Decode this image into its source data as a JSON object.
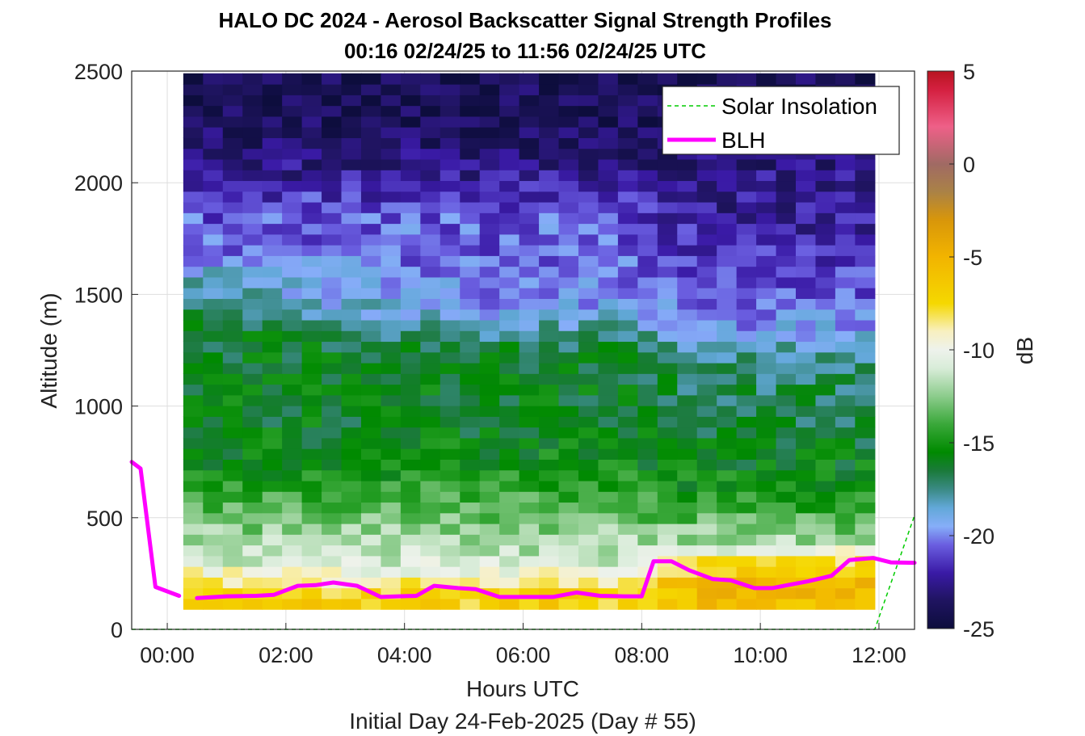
{
  "chart_data": {
    "type": "heatmap",
    "title": "HALO DC 2024 - Aerosol Backscatter Signal Strength Profiles",
    "subtitle": "00:16 02/24/25 to 11:56 02/24/25  UTC",
    "xlabel": "Hours UTC",
    "xlabel2": "Initial Day 24-Feb-2025 (Day # 55)",
    "ylabel": "Altitude (m)",
    "colorbar_label": "dB",
    "xlim": [
      -0.6,
      12.6
    ],
    "ylim": [
      0,
      2500
    ],
    "clim": [
      -25,
      5
    ],
    "x_ticks": [
      0,
      2,
      4,
      6,
      8,
      10,
      12
    ],
    "x_tick_labels": [
      "00:00",
      "02:00",
      "04:00",
      "06:00",
      "08:00",
      "10:00",
      "12:00"
    ],
    "y_ticks": [
      0,
      500,
      1000,
      1500,
      2000,
      2500
    ],
    "y_tick_labels": [
      "0",
      "500",
      "1000",
      "1500",
      "2000",
      "2500"
    ],
    "cb_ticks": [
      5,
      0,
      -5,
      -10,
      -15,
      -20,
      -25
    ],
    "cb_tick_labels": [
      "5",
      "0",
      "-5",
      "-10",
      "-15",
      "-20",
      "-25"
    ],
    "grid": true,
    "legend_position": "top-right",
    "heatmap": {
      "time_start": 0.27,
      "time_end": 11.93,
      "n_time": 35,
      "alt_start": 90,
      "alt_step": 48,
      "level_altitudes": [
        90,
        150,
        200,
        300,
        400,
        500,
        600,
        700,
        800,
        900,
        1000,
        1100,
        1200,
        1300,
        1400,
        1500,
        1550,
        1700,
        1800,
        1900,
        2000,
        2100,
        2200,
        2300,
        2400,
        2500
      ],
      "level_values_early": [
        -7,
        -7,
        -8,
        -11,
        -12,
        -13,
        -14,
        -15,
        -15.5,
        -16,
        -16,
        -16,
        -16,
        -16,
        -16.5,
        -18,
        -18,
        -20.5,
        -20.5,
        -21,
        -22,
        -23,
        -23.5,
        -24,
        -24,
        -24
      ],
      "level_values_mid": [
        -7,
        -7,
        -8,
        -11,
        -12,
        -13,
        -14,
        -15,
        -15.5,
        -16,
        -16,
        -16,
        -16,
        -17,
        -19,
        -20,
        -20,
        -20.5,
        -20.5,
        -21,
        -22,
        -23,
        -23.5,
        -24,
        -24,
        -24
      ],
      "level_values_late": [
        -6,
        -5.5,
        -5,
        -8,
        -12,
        -13.5,
        -15,
        -15.5,
        -16,
        -16.5,
        -16.5,
        -17,
        -17,
        -19,
        -20,
        -20.5,
        -21,
        -21.5,
        -22,
        -22.5,
        -22.5,
        -23,
        -23.5,
        -24,
        -24,
        -24
      ]
    },
    "series": [
      {
        "name": "Solar Insolation",
        "color": "#00cc00",
        "style": "dashed",
        "x": [
          -0.6,
          11.93,
          12.6
        ],
        "y": [
          0,
          0,
          510
        ]
      },
      {
        "name": "BLH",
        "color": "#ff00ff",
        "style": "solid",
        "segments": [
          {
            "x": [
              -0.6,
              -0.45,
              -0.2,
              0.2
            ],
            "y": [
              750,
              720,
              190,
              150
            ]
          },
          {
            "x": [
              0.5,
              1.0,
              1.5,
              1.8,
              2.2,
              2.5,
              2.8,
              3.2,
              3.6,
              3.9,
              4.2,
              4.5,
              4.9,
              5.2,
              5.6,
              6.0,
              6.2,
              6.5,
              6.9,
              7.3,
              7.7,
              8.0,
              8.2,
              8.5,
              8.8,
              9.2,
              9.5,
              9.9,
              10.2,
              10.5,
              10.8,
              11.2,
              11.5,
              11.9,
              12.2,
              12.6
            ],
            "y": [
              140,
              148,
              150,
              155,
              195,
              198,
              210,
              195,
              145,
              148,
              150,
              195,
              185,
              180,
              145,
              145,
              145,
              145,
              165,
              150,
              148,
              148,
              305,
              305,
              265,
              225,
              220,
              185,
              185,
              200,
              215,
              240,
              310,
              320,
              300,
              298
            ]
          }
        ]
      }
    ],
    "colormap_stops": [
      {
        "v": -25,
        "color": "#0d0d3d"
      },
      {
        "v": -23.5,
        "color": "#1f1460"
      },
      {
        "v": -22,
        "color": "#3a1aa6"
      },
      {
        "v": -20.5,
        "color": "#6a5ee0"
      },
      {
        "v": -19.5,
        "color": "#86aef8"
      },
      {
        "v": -18.5,
        "color": "#62a8d8"
      },
      {
        "v": -17.5,
        "color": "#3a8a84"
      },
      {
        "v": -16.5,
        "color": "#1a7a3a"
      },
      {
        "v": -15.5,
        "color": "#008a00"
      },
      {
        "v": -14,
        "color": "#3aa83a"
      },
      {
        "v": -12.5,
        "color": "#8ccc8c"
      },
      {
        "v": -11,
        "color": "#d8ecd8"
      },
      {
        "v": -10,
        "color": "#eef2ec"
      },
      {
        "v": -9,
        "color": "#f8f0c0"
      },
      {
        "v": -7.5,
        "color": "#f5d800"
      },
      {
        "v": -5,
        "color": "#f2b400"
      },
      {
        "v": -3,
        "color": "#d8960a"
      },
      {
        "v": -1.5,
        "color": "#aa8246"
      },
      {
        "v": 0,
        "color": "#a06a64"
      },
      {
        "v": 2,
        "color": "#ee6088"
      },
      {
        "v": 4,
        "color": "#d42040"
      },
      {
        "v": 5,
        "color": "#b81420"
      }
    ]
  }
}
